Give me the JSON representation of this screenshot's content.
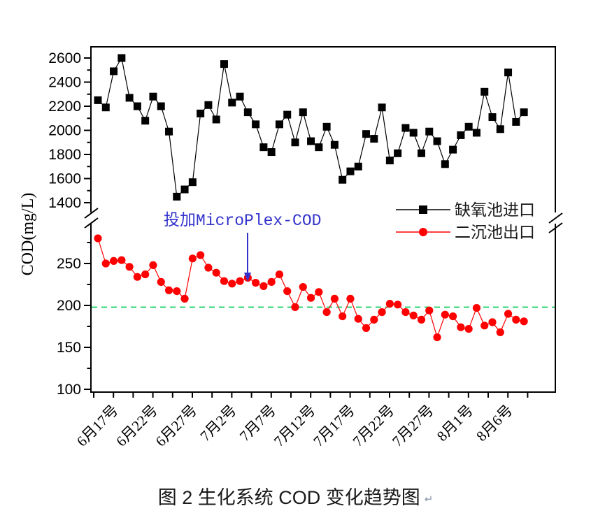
{
  "figure": {
    "caption": "图 2 生化系统 COD 变化趋势图",
    "caption_mark": "↵"
  },
  "chart_data": {
    "type": "line",
    "title": "",
    "xlabel": "",
    "ylabel": "COD(mg/L)",
    "broken_y_axis": true,
    "grid": false,
    "x_tick_labels": [
      "6月17号",
      "6月22号",
      "6月27号",
      "7月2号",
      "7月7号",
      "7月12号",
      "7月17号",
      "7月22号",
      "7月27号",
      "8月1号",
      "8月6号"
    ],
    "y_axis_upper": {
      "ticks": [
        1400,
        1600,
        1800,
        2000,
        2200,
        2400,
        2600
      ],
      "minor_ticks": [
        1500,
        1700,
        1900,
        2100,
        2300,
        2500
      ]
    },
    "y_axis_lower": {
      "ticks": [
        100,
        150,
        200,
        250
      ],
      "minor_ticks": [
        125,
        175,
        225,
        275
      ]
    },
    "series": [
      {
        "name": "缺氧池进口",
        "marker": "square",
        "color": "#000000",
        "axis_segment": "upper",
        "values": [
          2250,
          2190,
          2490,
          2600,
          2270,
          2200,
          2080,
          2280,
          2200,
          1990,
          1450,
          1510,
          1570,
          2140,
          2210,
          2090,
          2550,
          2230,
          2280,
          2150,
          2050,
          1860,
          1820,
          2050,
          2130,
          1900,
          2150,
          1910,
          1860,
          2030,
          1880,
          1590,
          1660,
          1700,
          1970,
          1930,
          2190,
          1750,
          1810,
          2020,
          1980,
          1810,
          1990,
          1910,
          1720,
          1840,
          1960,
          2030,
          1980,
          2320,
          2110,
          2010,
          2480,
          2070,
          2150
        ]
      },
      {
        "name": "二沉池出口",
        "marker": "circle",
        "color": "#ff0000",
        "axis_segment": "lower",
        "values": [
          280,
          250,
          253,
          254,
          246,
          234,
          237,
          248,
          228,
          218,
          217,
          208,
          256,
          260,
          245,
          239,
          229,
          226,
          229,
          233,
          227,
          223,
          228,
          237,
          217,
          198,
          222,
          209,
          216,
          192,
          208,
          187,
          208,
          184,
          173,
          183,
          192,
          202,
          201,
          192,
          188,
          183,
          194,
          162,
          189,
          187,
          174,
          172,
          197,
          176,
          180,
          168,
          190,
          183,
          181
        ]
      }
    ],
    "reference_line": {
      "value": 198,
      "color": "#00cc55",
      "style": "dashed"
    },
    "annotation": {
      "text_cjk": "投加",
      "text_latin": "MicroPlex-COD",
      "color": "#3333cc",
      "arrow_target_point_index": 19,
      "arrow_target_series": "二沉池出口"
    },
    "legend": {
      "position": "inside-right",
      "items": [
        "缺氧池进口",
        "二沉池出口"
      ]
    }
  }
}
